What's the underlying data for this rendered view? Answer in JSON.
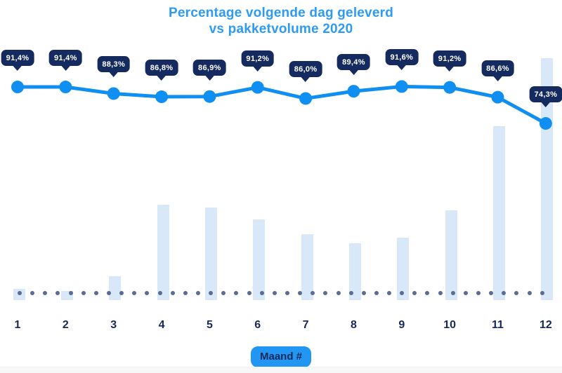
{
  "title": {
    "line1": "Percentage volgende dag geleverd",
    "line2": "vs pakketvolume 2020"
  },
  "x_axis": {
    "label_badge": "Maand #",
    "tick_labels": [
      "1",
      "2",
      "3",
      "4",
      "5",
      "6",
      "7",
      "8",
      "9",
      "10",
      "11",
      "12"
    ]
  },
  "chart_data": {
    "type": "combo",
    "subtypes": [
      "line",
      "bar"
    ],
    "title": "Percentage volgende dag geleverd vs pakketvolume 2020",
    "xlabel": "Maand #",
    "categories": [
      1,
      2,
      3,
      4,
      5,
      6,
      7,
      8,
      9,
      10,
      11,
      12
    ],
    "series": [
      {
        "name": "Percentage volgende dag geleverd",
        "type": "line",
        "unit": "%",
        "values": [
          91.4,
          91.4,
          88.3,
          86.8,
          86.9,
          91.2,
          86.0,
          89.4,
          91.6,
          91.2,
          86.6,
          74.3
        ],
        "labels": [
          "91,4%",
          "91,4%",
          "88,3%",
          "86,8%",
          "86,9%",
          "91,2%",
          "86,0%",
          "89,4%",
          "91,6%",
          "91,2%",
          "86,6%",
          "74,3%"
        ],
        "color": "#0f8ff2"
      },
      {
        "name": "Pakketvolume 2020",
        "type": "bar",
        "unit": "relative volume, month 12 = 100 (no value axis shown; estimated from bar heights)",
        "values": [
          4.6,
          3.8,
          9.9,
          39.4,
          38.3,
          33.3,
          27.2,
          23.5,
          25.8,
          37.1,
          71.9,
          100
        ],
        "color": "#d9e8f8"
      }
    ],
    "ylim_line_pct": [
      70,
      95
    ],
    "legend": "none",
    "grid": false,
    "baseline": "dotted gray line at bar bottoms"
  },
  "colors": {
    "title_blue": "#2d9af4",
    "line_blue": "#0f8ff2",
    "tooltip_navy": "#152a5e",
    "bar_light_blue": "#d9e8f8",
    "baseline_dot_gray": "#5a6c94",
    "axis_label_navy": "#16295b",
    "badge_blue": "#2196f3"
  }
}
